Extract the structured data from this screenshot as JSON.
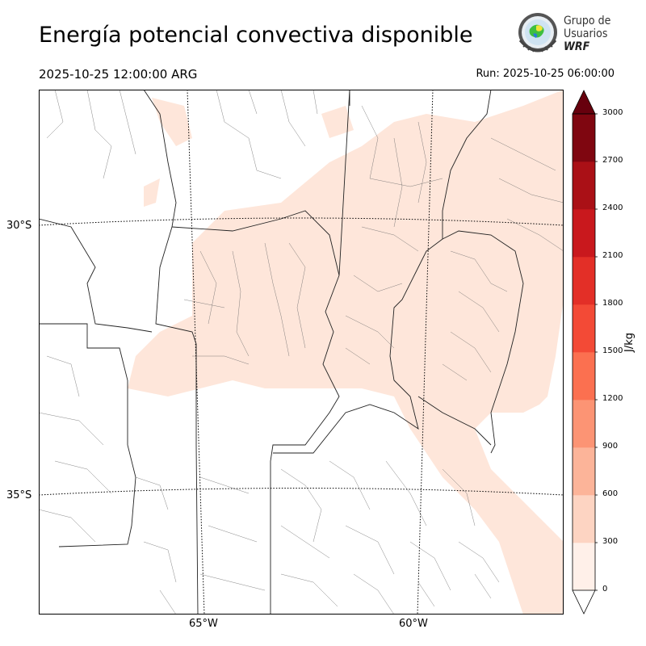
{
  "header": {
    "title": "Energía potencial convectiva disponible",
    "valid_time": "2025-10-25 12:00:00 ARG",
    "run_time": "Run: 2025-10-25 06:00:00"
  },
  "logo": {
    "line1": "Grupo de",
    "line2": "Usuarios",
    "line3": "WRF"
  },
  "map": {
    "lat_labels": [
      "30°S",
      "35°S"
    ],
    "lon_labels": [
      "65°W",
      "60°W"
    ],
    "field_color": "#fee6da"
  },
  "colorbar": {
    "unit": "J/kg",
    "ticks": [
      "0",
      "300",
      "600",
      "900",
      "1200",
      "1500",
      "1800",
      "2100",
      "2400",
      "2700",
      "3000"
    ],
    "colors": [
      "#fff0e9",
      "#fdd4c2",
      "#fcb499",
      "#fc9474",
      "#fb7050",
      "#f34a36",
      "#e32f27",
      "#c9181d",
      "#aa1016",
      "#7f0610"
    ],
    "over_color": "#67000d"
  }
}
